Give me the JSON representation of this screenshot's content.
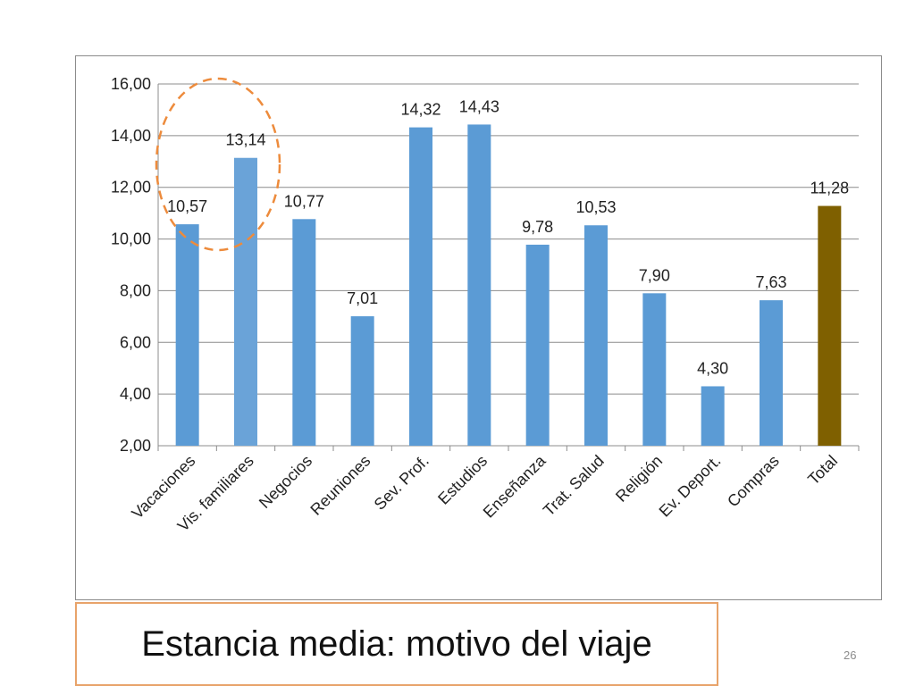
{
  "slide": {
    "caption": "Estancia media: motivo del viaje",
    "page_number": "26"
  },
  "colors": {
    "bar": "#5b9bd5",
    "bar_highlight": "#7f6000",
    "highlight_bar_alt": "#6aa3d8",
    "grid": "#8c8c8c",
    "ellipse": "#ed8b3c",
    "caption_border": "#e8a36a"
  },
  "chart_data": {
    "type": "bar",
    "categories": [
      "Vacaciones",
      "Vis. familiares",
      "Negocios",
      "Reuniones",
      "Sev. Prof.",
      "Estudios",
      "Enseñanza",
      "Trat. Salud",
      "Religión",
      "Ev. Deport.",
      "Compras",
      "Total"
    ],
    "values": [
      10.57,
      13.14,
      10.77,
      7.01,
      14.32,
      14.43,
      9.78,
      10.53,
      7.9,
      4.3,
      7.63,
      11.28
    ],
    "value_labels": [
      "10,57",
      "13,14",
      "10,77",
      "7,01",
      "14,32",
      "14,43",
      "9,78",
      "10,53",
      "7,90",
      "4,30",
      "7,63",
      "11,28"
    ],
    "highlight_index": 11,
    "circled_indices": [
      0,
      1
    ],
    "ylim": [
      2,
      16
    ],
    "yticks": [
      2,
      4,
      6,
      8,
      10,
      12,
      14,
      16
    ],
    "ytick_labels": [
      "2,00",
      "4,00",
      "6,00",
      "8,00",
      "10,00",
      "12,00",
      "14,00",
      "16,00"
    ],
    "grid": true,
    "title": "",
    "xlabel": "",
    "ylabel": ""
  }
}
